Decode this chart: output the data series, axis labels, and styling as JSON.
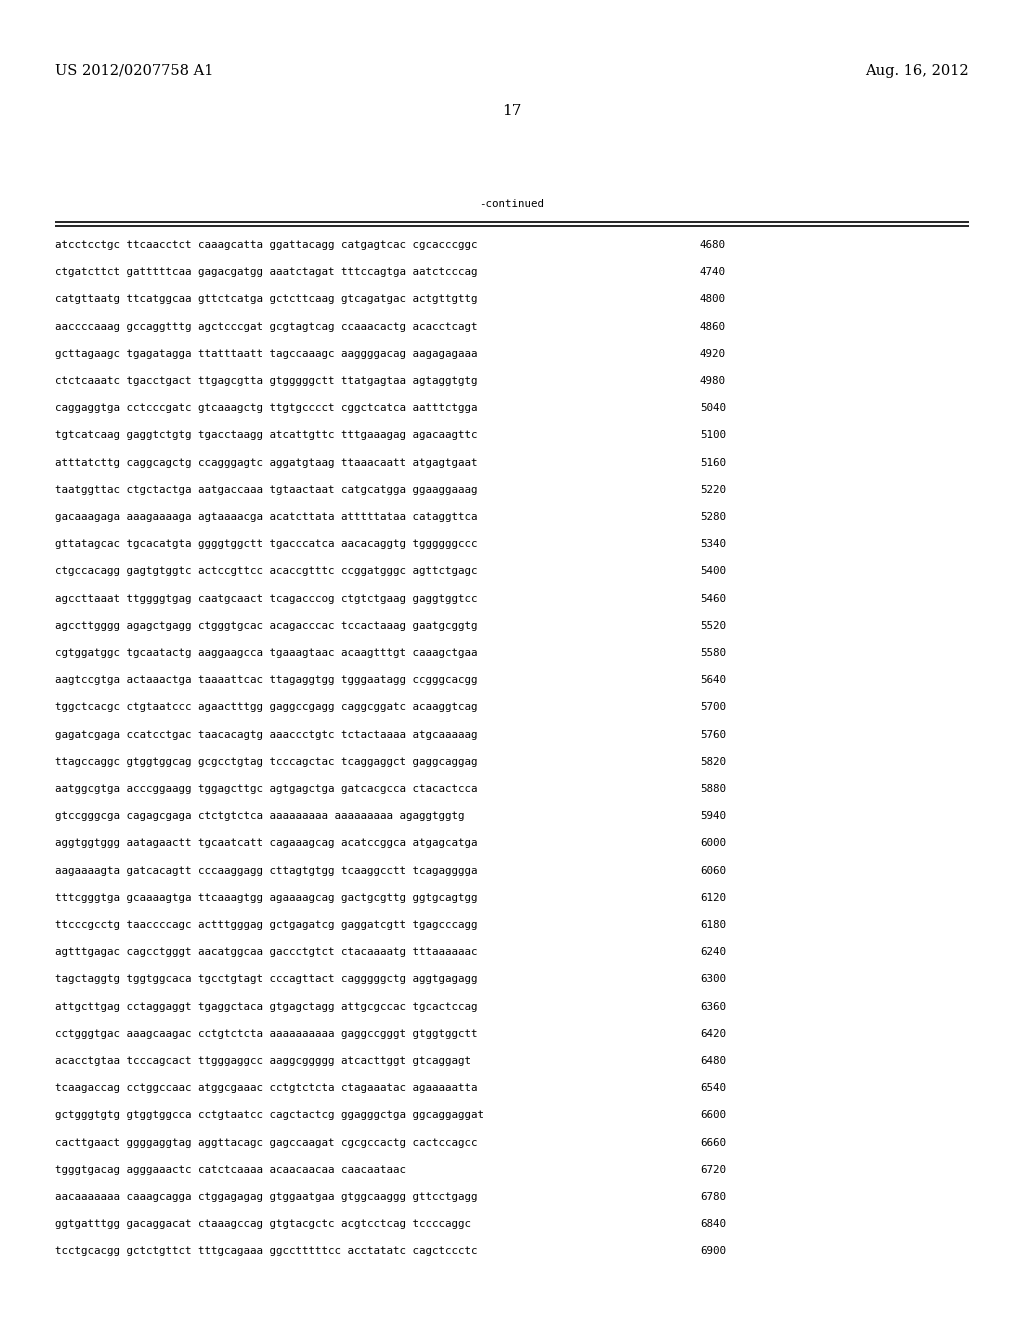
{
  "header_left": "US 2012/0207758 A1",
  "header_right": "Aug. 16, 2012",
  "page_number": "17",
  "continued_label": "-continued",
  "background_color": "#ffffff",
  "text_color": "#000000",
  "font_size_header": 10.5,
  "font_size_body": 7.8,
  "font_size_page": 11,
  "sequence_lines": [
    [
      "atcctcctgc ttcaacctct caaagcatta ggattacagg catgagtcac cgcacccggc",
      "4680"
    ],
    [
      "ctgatcttct gatttttcaa gagacgatgg aaatctagat tttccagtga aatctcccag",
      "4740"
    ],
    [
      "catgttaatg ttcatggcaa gttctcatga gctcttcaag gtcagatgac actgttgttg",
      "4800"
    ],
    [
      "aaccccaaag gccaggtttg agctcccgat gcgtagtcag ccaaacactg acacctcagt",
      "4860"
    ],
    [
      "gcttagaagc tgagatagga ttatttaatt tagccaaagc aaggggacag aagagagaaa",
      "4920"
    ],
    [
      "ctctcaaatc tgacctgact ttgagcgtta gtgggggctt ttatgagtaa agtaggtgtg",
      "4980"
    ],
    [
      "caggaggtga cctcccgatc gtcaaagctg ttgtgcccct cggctcatca aatttctgga",
      "5040"
    ],
    [
      "tgtcatcaag gaggtctgtg tgacctaagg atcattgttc tttgaaagag agacaagttc",
      "5100"
    ],
    [
      "atttatcttg caggcagctg ccagggagtc aggatgtaag ttaaacaatt atgagtgaat",
      "5160"
    ],
    [
      "taatggttac ctgctactga aatgaccaaa tgtaactaat catgcatgga ggaaggaaag",
      "5220"
    ],
    [
      "gacaaagaga aaagaaaaga agtaaaacga acatcttata atttttataa cataggttca",
      "5280"
    ],
    [
      "gttatagcac tgcacatgta ggggtggctt tgacccatca aacacaggtg tggggggccc",
      "5340"
    ],
    [
      "ctgccacagg gagtgtggtc actccgttcc acaccgtttc ccggatgggc agttctgagc",
      "5400"
    ],
    [
      "agccttaaat ttggggtgag caatgcaact tcagacccog ctgtctgaag gaggtggtcc",
      "5460"
    ],
    [
      "agccttgggg agagctgagg ctgggtgcac acagacccac tccactaaag gaatgcggtg",
      "5520"
    ],
    [
      "cgtggatggc tgcaatactg aaggaagcca tgaaagtaac acaagtttgt caaagctgaa",
      "5580"
    ],
    [
      "aagtccgtga actaaactga taaaattcac ttagaggtgg tgggaatagg ccgggcacgg",
      "5640"
    ],
    [
      "tggctcacgc ctgtaatccc agaactttgg gaggccgagg caggcggatc acaaggtcag",
      "5700"
    ],
    [
      "gagatcgaga ccatcctgac taacacagtg aaaccctgtc tctactaaaa atgcaaaaag",
      "5760"
    ],
    [
      "ttagccaggc gtggtggcag gcgcctgtag tcccagctac tcaggaggct gaggcaggag",
      "5820"
    ],
    [
      "aatggcgtga acccggaagg tggagcttgc agtgagctga gatcacgcca ctacactcca",
      "5880"
    ],
    [
      "gtccgggcga cagagcgaga ctctgtctca aaaaaaaaa aaaaaaaaa agaggtggtg",
      "5940"
    ],
    [
      "aggtggtggg aatagaactt tgcaatcatt cagaaagcag acatccggca atgagcatga",
      "6000"
    ],
    [
      "aagaaaagta gatcacagtt cccaaggagg cttagtgtgg tcaaggcctt tcagagggga",
      "6060"
    ],
    [
      "tttcgggtga gcaaaagtga ttcaaagtgg agaaaagcag gactgcgttg ggtgcagtgg",
      "6120"
    ],
    [
      "ttcccgcctg taaccccagc actttgggag gctgagatcg gaggatcgtt tgagcccagg",
      "6180"
    ],
    [
      "agtttgagac cagcctgggt aacatggcaa gaccctgtct ctacaaaatg tttaaaaaac",
      "6240"
    ],
    [
      "tagctaggtg tggtggcaca tgcctgtagt cccagttact cagggggctg aggtgagagg",
      "6300"
    ],
    [
      "attgcttgag cctaggaggt tgaggctaca gtgagctagg attgcgccac tgcactccag",
      "6360"
    ],
    [
      "cctgggtgac aaagcaagac cctgtctcta aaaaaaaaaa gaggccgggt gtggtggctt",
      "6420"
    ],
    [
      "acacctgtaa tcccagcact ttgggaggcc aaggcggggg atcacttggt gtcaggagt",
      "6480"
    ],
    [
      "tcaagaccag cctggccaac atggcgaaac cctgtctcta ctagaaatac agaaaaatta",
      "6540"
    ],
    [
      "gctgggtgtg gtggtggcca cctgtaatcc cagctactcg ggagggctga ggcaggaggat",
      "6600"
    ],
    [
      "cacttgaact ggggaggtag aggttacagc gagccaagat cgcgccactg cactccagcc",
      "6660"
    ],
    [
      "tgggtgacag agggaaactc catctcaaaa acaacaacaa caacaataac",
      "6720"
    ],
    [
      "aacaaaaaaa caaagcagga ctggagagag gtggaatgaa gtggcaaggg gttcctgagg",
      "6780"
    ],
    [
      "ggtgatttgg gacaggacat ctaaagccag gtgtacgctc acgtcctcag tccccaggc",
      "6840"
    ],
    [
      "tcctgcacgg gctctgttct tttgcagaaa ggcctttttcc acctatatc cagctccctc",
      "6900"
    ]
  ]
}
